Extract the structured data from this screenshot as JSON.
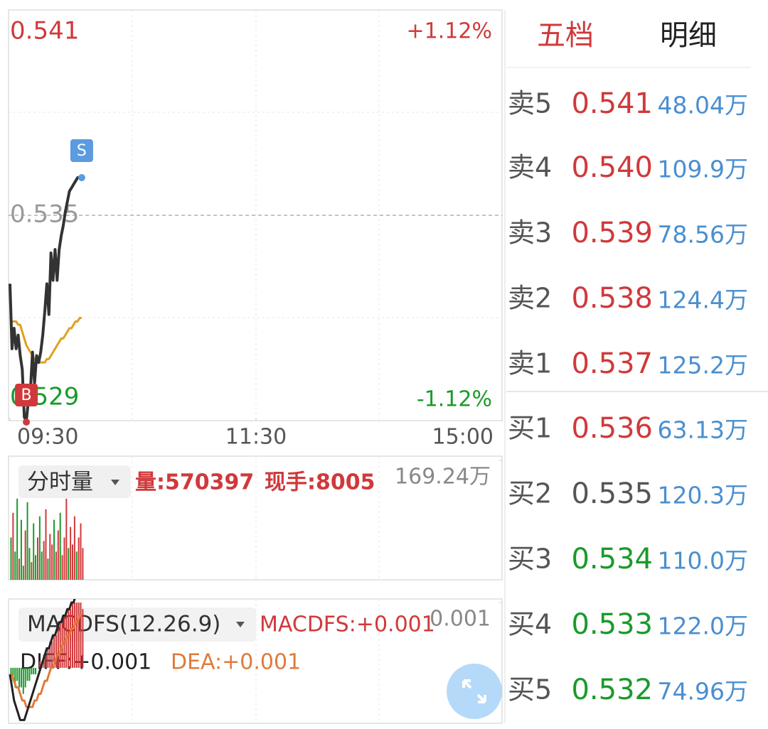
{
  "price_chart": {
    "ylim": [
      0.529,
      0.541
    ],
    "yticks": [
      0.541,
      0.535,
      0.529
    ],
    "y2lim": [
      -1.12,
      1.12
    ],
    "y2ticks": [
      {
        "value": 1.12,
        "label": "+1.12%"
      },
      {
        "value": -1.12,
        "label": "-1.12%"
      }
    ],
    "xlim": [
      0,
      240
    ],
    "xticks": [
      {
        "value": 0,
        "label": "09:30"
      },
      {
        "value": 120,
        "label": "11:30"
      },
      {
        "value": 240,
        "label": "15:00"
      }
    ],
    "prices": [
      0.533,
      0.5311,
      0.5317,
      0.5311,
      0.5315,
      0.5309,
      0.5305,
      0.5291,
      0.529,
      0.5296,
      0.5299,
      0.531,
      0.5301,
      0.5309,
      0.5307,
      0.531,
      0.5315,
      0.5322,
      0.533,
      0.5321,
      0.5339,
      0.5331,
      0.534,
      0.5331,
      0.534,
      0.5344,
      0.5347,
      0.5351,
      0.5354,
      0.5357,
      0.5358,
      0.5359,
      0.536,
      0.5361,
      0.5361,
      0.5361
    ],
    "average": [
      0.5319,
      0.5319,
      0.5319,
      0.5319,
      0.5318,
      0.5318,
      0.5316,
      0.5314,
      0.5312,
      0.5311,
      0.531,
      0.5309,
      0.5308,
      0.5308,
      0.5307,
      0.5307,
      0.5307,
      0.5307,
      0.5308,
      0.5308,
      0.5309,
      0.531,
      0.5311,
      0.5312,
      0.5313,
      0.5314,
      0.5314,
      0.5315,
      0.5316,
      0.5317,
      0.5317,
      0.5318,
      0.5319,
      0.5319,
      0.532,
      0.532
    ],
    "markers": [
      "B",
      "S"
    ]
  },
  "volume": {
    "selector": "分时量",
    "total": "量:570397",
    "current": "现手:8005",
    "ylim": [
      0,
      169.24
    ],
    "yticks": [
      {
        "value": 169.24,
        "label": "169.24万"
      }
    ],
    "values": [
      60,
      95,
      40,
      115,
      30,
      85,
      20,
      70,
      110,
      45,
      25,
      80,
      35,
      60,
      90,
      40,
      55,
      100,
      30,
      65,
      50,
      85,
      40,
      70,
      95,
      35,
      60,
      115,
      45,
      75,
      50,
      90,
      40,
      60,
      80,
      45
    ],
    "up": [
      false,
      true,
      false,
      false,
      true,
      false,
      false,
      true,
      false,
      false,
      true,
      false,
      false,
      true,
      false,
      false,
      true,
      true,
      false,
      true,
      true,
      false,
      true,
      true,
      false,
      true,
      true,
      true,
      false,
      true,
      true,
      true,
      false,
      true,
      true,
      true
    ]
  },
  "macd": {
    "selector": "MACDFS(12.26.9)",
    "macdfs": "MACDFS:+0.001",
    "diff_label": "DIFF:+0.001",
    "dea_label": "DEA:+0.001",
    "ylim": [
      -0.00085,
      0.001
    ],
    "yticks": [
      0.001
    ],
    "bars": [
      -0.0001,
      -0.0002,
      -0.0003,
      -0.0002,
      -0.0003,
      -0.0003,
      -0.0004,
      -0.0003,
      -0.0002,
      -0.0002,
      -0.0001,
      -0.0001,
      -0.0001,
      0,
      0.0001,
      0.0001,
      0.0002,
      0.0002,
      0.0003,
      0.0004,
      0.0004,
      0.0005,
      0.0005,
      0.0006,
      0.0007,
      0.0007,
      0.0008,
      0.0008,
      0.0009,
      0.0009,
      0.001,
      0.001,
      0.001,
      0.001,
      0.001,
      0.0009
    ],
    "diff": [
      -0.0001,
      -0.0003,
      -0.0005,
      -0.0006,
      -0.0007,
      -0.0008,
      -0.0008,
      -0.0008,
      -0.0007,
      -0.0006,
      -0.0005,
      -0.0004,
      -0.0003,
      -0.0002,
      -0.0001,
      0,
      0.0001,
      0.0002,
      0.0003,
      0.0003,
      0.0004,
      0.0005,
      0.0005,
      0.0006,
      0.0007,
      0.0007,
      0.0008,
      0.0008,
      0.0009,
      0.0009,
      0.001,
      0.001,
      0.0011,
      0.0011,
      0.0012,
      0.0012
    ],
    "dea": [
      -0.0001,
      -0.0001,
      -0.0002,
      -0.0003,
      -0.0003,
      -0.0004,
      -0.0005,
      -0.0005,
      -0.0006,
      -0.0006,
      -0.0006,
      -0.0006,
      -0.0005,
      -0.0005,
      -0.0004,
      -0.0004,
      -0.0003,
      -0.0002,
      -0.0002,
      -0.0001,
      0,
      0,
      0.0001,
      0.0002,
      0.0002,
      0.0003,
      0.0004,
      0.0004,
      0.0005,
      0.0005,
      0.0006,
      0.0006,
      0.0007,
      0.0007,
      0.0008,
      0.0008
    ]
  },
  "order_book": {
    "tabs": [
      "五档",
      "明细"
    ],
    "rows": [
      {
        "label": "卖5",
        "price": "0.541",
        "volume": "48.04万",
        "color": "#d0393b"
      },
      {
        "label": "卖4",
        "price": "0.540",
        "volume": "109.9万",
        "color": "#d0393b"
      },
      {
        "label": "卖3",
        "price": "0.539",
        "volume": "78.56万",
        "color": "#d0393b"
      },
      {
        "label": "卖2",
        "price": "0.538",
        "volume": "124.4万",
        "color": "#d0393b"
      },
      {
        "label": "卖1",
        "price": "0.537",
        "volume": "125.2万",
        "color": "#d0393b"
      },
      {
        "label": "买1",
        "price": "0.536",
        "volume": "63.13万",
        "color": "#d0393b"
      },
      {
        "label": "买2",
        "price": "0.535",
        "volume": "120.3万",
        "color": "#555555"
      },
      {
        "label": "买3",
        "price": "0.534",
        "volume": "110.0万",
        "color": "#1a9a2a"
      },
      {
        "label": "买4",
        "price": "0.533",
        "volume": "122.0万",
        "color": "#1a9a2a"
      },
      {
        "label": "买5",
        "price": "0.532",
        "volume": "74.96万",
        "color": "#1a9a2a"
      }
    ]
  }
}
